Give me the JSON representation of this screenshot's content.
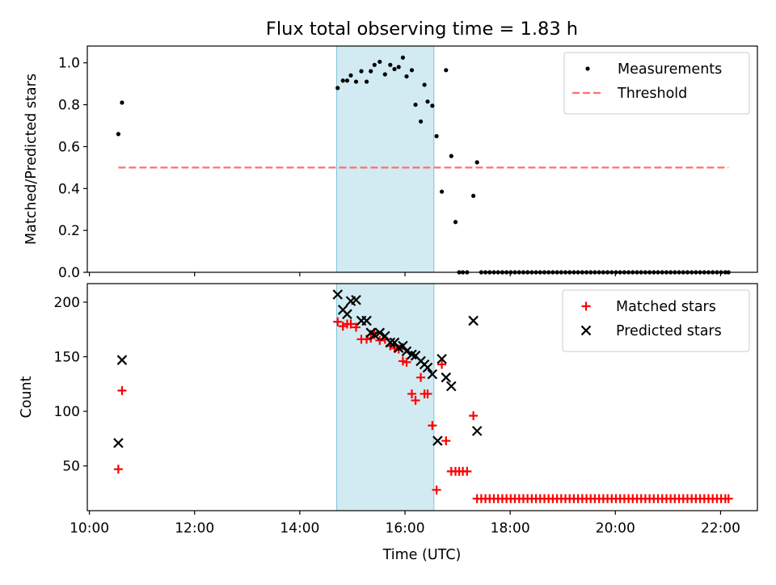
{
  "chart_data": {
    "title": "Flux total observing time = 1.83 h",
    "xlabel": "Time (UTC)",
    "x_ticks": [
      "10:00",
      "12:00",
      "14:00",
      "16:00",
      "18:00",
      "20:00",
      "22:00"
    ],
    "x_tick_values": [
      10,
      12,
      14,
      16,
      18,
      20,
      22
    ],
    "xlim": [
      9.96,
      22.7
    ],
    "highlight_span": [
      14.7,
      16.55
    ],
    "highlight_color": "#add8e6",
    "panels": [
      {
        "type": "scatter",
        "ylabel": "Matched/Predicted stars",
        "ylim": [
          0,
          1.08
        ],
        "y_ticks": [
          "0.0",
          "0.2",
          "0.4",
          "0.6",
          "0.8",
          "1.0"
        ],
        "y_tick_values": [
          0,
          0.2,
          0.4,
          0.6,
          0.8,
          1.0
        ],
        "legend_position": "top-right",
        "threshold": {
          "name": "Threshold",
          "value": 0.5,
          "x_range": [
            10.55,
            22.15
          ],
          "color": "#ff6f6f"
        },
        "series": [
          {
            "name": "Measurements",
            "marker": "dot",
            "color": "#000000",
            "x": [
              10.55,
              10.62,
              14.72,
              14.82,
              14.9,
              14.97,
              15.07,
              15.17,
              15.27,
              15.35,
              15.42,
              15.52,
              15.62,
              15.72,
              15.8,
              15.88,
              15.96,
              16.03,
              16.13,
              16.2,
              16.3,
              16.37,
              16.43,
              16.52,
              16.6,
              16.7,
              16.78,
              16.88,
              17.3,
              17.37,
              16.96,
              17.03,
              17.1,
              17.18,
              17.45,
              17.53,
              17.61,
              17.69,
              17.77,
              17.85,
              17.93,
              18.01,
              18.09,
              18.17,
              18.25,
              18.33,
              18.41,
              18.49,
              18.57,
              18.65,
              18.73,
              18.81,
              18.89,
              18.97,
              19.05,
              19.13,
              19.21,
              19.29,
              19.37,
              19.45,
              19.53,
              19.61,
              19.69,
              19.77,
              19.85,
              19.93,
              20.01,
              20.09,
              20.17,
              20.25,
              20.33,
              20.41,
              20.49,
              20.57,
              20.65,
              20.73,
              20.81,
              20.89,
              20.97,
              21.05,
              21.13,
              21.21,
              21.29,
              21.37,
              21.45,
              21.53,
              21.61,
              21.69,
              21.77,
              21.85,
              21.93,
              22.01,
              22.09,
              22.15
            ],
            "y": [
              0.66,
              0.81,
              0.88,
              0.915,
              0.915,
              0.94,
              0.91,
              0.96,
              0.91,
              0.96,
              0.99,
              1.005,
              0.945,
              0.99,
              0.97,
              0.98,
              1.025,
              0.935,
              0.965,
              0.8,
              0.72,
              0.895,
              0.815,
              0.795,
              0.65,
              0.385,
              0.965,
              0.555,
              0.365,
              0.525,
              0.24,
              0,
              0,
              0,
              0,
              0,
              0,
              0,
              0,
              0,
              0,
              0,
              0,
              0,
              0,
              0,
              0,
              0,
              0,
              0,
              0,
              0,
              0,
              0,
              0,
              0,
              0,
              0,
              0,
              0,
              0,
              0,
              0,
              0,
              0,
              0,
              0,
              0,
              0,
              0,
              0,
              0,
              0,
              0,
              0,
              0,
              0,
              0,
              0,
              0,
              0,
              0,
              0,
              0,
              0,
              0,
              0,
              0,
              0,
              0,
              0,
              0,
              0,
              0
            ]
          }
        ]
      },
      {
        "type": "scatter",
        "ylabel": "Count",
        "ylim": [
          9,
          217
        ],
        "y_ticks": [
          "50",
          "100",
          "150",
          "200"
        ],
        "y_tick_values": [
          50,
          100,
          150,
          200
        ],
        "legend_position": "top-right",
        "series": [
          {
            "name": "Matched stars",
            "marker": "plus",
            "color": "#ff0000",
            "x": [
              10.55,
              10.62,
              14.72,
              14.82,
              14.9,
              14.97,
              15.07,
              15.17,
              15.27,
              15.35,
              15.42,
              15.52,
              15.62,
              15.72,
              15.8,
              15.88,
              15.96,
              16.03,
              16.13,
              16.2,
              16.3,
              16.37,
              16.43,
              16.52,
              16.6,
              16.7,
              16.78,
              16.88,
              16.96,
              17.03,
              17.1,
              17.18,
              17.3,
              17.37,
              17.45,
              17.53,
              17.61,
              17.69,
              17.77,
              17.85,
              17.93,
              18.01,
              18.09,
              18.17,
              18.25,
              18.33,
              18.41,
              18.49,
              18.57,
              18.65,
              18.73,
              18.81,
              18.89,
              18.97,
              19.05,
              19.13,
              19.21,
              19.29,
              19.37,
              19.45,
              19.53,
              19.61,
              19.69,
              19.77,
              19.85,
              19.93,
              20.01,
              20.09,
              20.17,
              20.25,
              20.33,
              20.41,
              20.49,
              20.57,
              20.65,
              20.73,
              20.81,
              20.89,
              20.97,
              21.05,
              21.13,
              21.21,
              21.29,
              21.37,
              21.45,
              21.53,
              21.61,
              21.69,
              21.77,
              21.85,
              21.93,
              22.01,
              22.09,
              22.15
            ],
            "y": [
              47,
              119,
              182,
              178,
              180,
              180,
              177,
              166,
              166,
              167,
              172,
              165,
              166,
              160,
              158,
              157,
              146,
              145,
              116,
              110,
              131,
              116,
              116,
              87,
              28,
              143,
              73,
              45,
              45,
              45,
              45,
              45,
              96,
              20,
              20,
              20,
              20,
              20,
              20,
              20,
              20,
              20,
              20,
              20,
              20,
              20,
              20,
              20,
              20,
              20,
              20,
              20,
              20,
              20,
              20,
              20,
              20,
              20,
              20,
              20,
              20,
              20,
              20,
              20,
              20,
              20,
              20,
              20,
              20,
              20,
              20,
              20,
              20,
              20,
              20,
              20,
              20,
              20,
              20,
              20,
              20,
              20,
              20,
              20,
              20,
              20,
              20,
              20,
              20,
              20,
              20,
              20,
              20,
              20
            ]
          },
          {
            "name": "Predicted stars",
            "marker": "x",
            "color": "#000000",
            "x": [
              10.55,
              10.62,
              14.72,
              14.82,
              14.9,
              14.97,
              15.07,
              15.17,
              15.27,
              15.35,
              15.42,
              15.52,
              15.62,
              15.72,
              15.8,
              15.88,
              15.96,
              16.03,
              16.13,
              16.2,
              16.3,
              16.37,
              16.43,
              16.52,
              16.62,
              16.7,
              16.78,
              16.88,
              17.3,
              17.37
            ],
            "y": [
              71,
              147,
              207,
              193,
              189,
              201,
              202,
              183,
              183,
              172,
              170,
              172,
              169,
              163,
              163,
              158,
              160,
              155,
              152,
              151,
              146,
              143,
              140,
              134,
              73,
              148,
              131,
              123,
              183,
              82
            ]
          }
        ]
      }
    ]
  }
}
